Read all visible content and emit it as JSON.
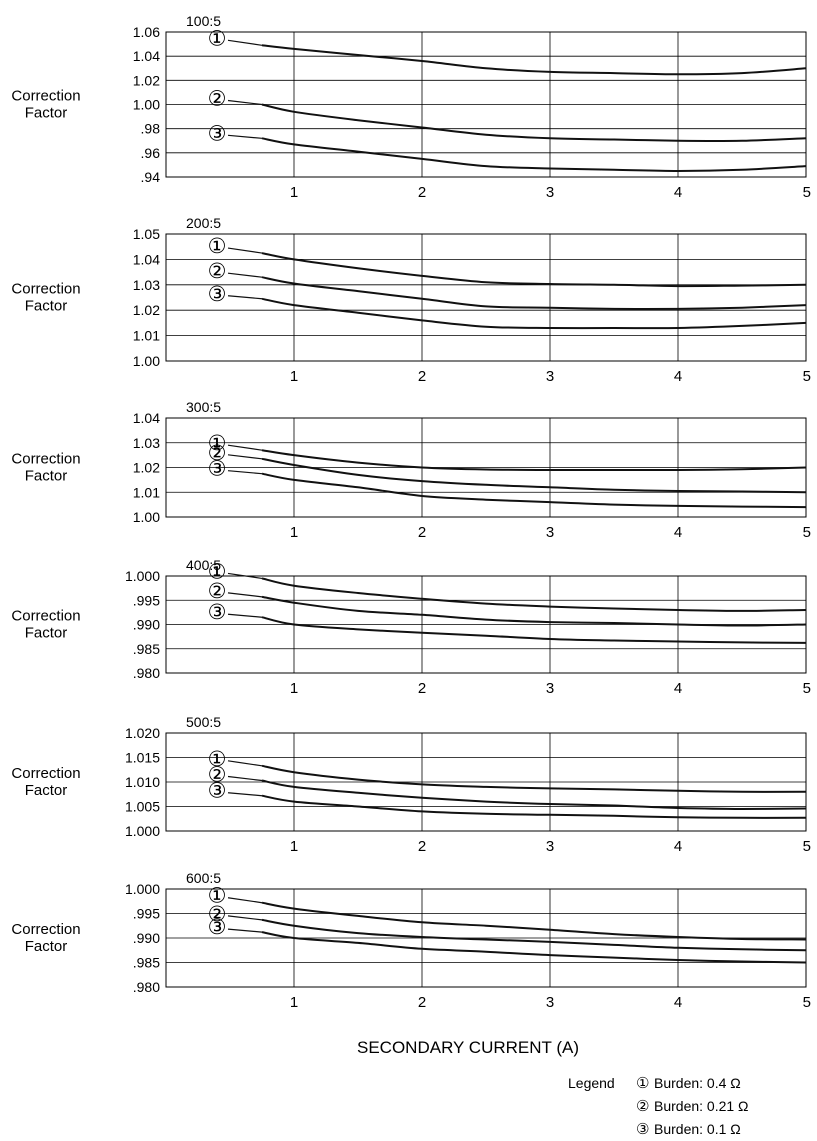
{
  "xlabel": "SECONDARY CURRENT (A)",
  "legend": {
    "title": "Legend",
    "placement": "bottom-right",
    "items": [
      {
        "marker": "①",
        "label": "Burden: 0.4 Ω"
      },
      {
        "marker": "②",
        "label": "Burden: 0.21 Ω"
      },
      {
        "marker": "③",
        "label": "Burden: 0.1 Ω"
      }
    ]
  },
  "chart_data": [
    {
      "type": "line",
      "title": "100:5",
      "ylabel": "Correction Factor",
      "xlim": [
        0,
        5
      ],
      "ylim": [
        0.94,
        1.06
      ],
      "xticks": [
        1,
        2,
        3,
        4,
        5
      ],
      "xtick_labels": [
        "1",
        "2",
        "3",
        "4",
        "5"
      ],
      "yticks": [
        0.94,
        0.96,
        0.98,
        1.0,
        1.02,
        1.04,
        1.06
      ],
      "ytick_labels": [
        ".94",
        ".96",
        ".98",
        "1.00",
        "1.02",
        "1.04",
        "1.06"
      ],
      "grid": true,
      "series": [
        {
          "marker": "①",
          "x": [
            0.75,
            1,
            1.5,
            2,
            2.5,
            3,
            3.5,
            4,
            4.5,
            5
          ],
          "y": [
            1.049,
            1.046,
            1.041,
            1.036,
            1.03,
            1.027,
            1.026,
            1.025,
            1.026,
            1.03
          ]
        },
        {
          "marker": "②",
          "x": [
            0.75,
            1,
            1.5,
            2,
            2.5,
            3,
            3.5,
            4,
            4.5,
            5
          ],
          "y": [
            1.0,
            0.994,
            0.987,
            0.981,
            0.975,
            0.972,
            0.971,
            0.97,
            0.97,
            0.972
          ]
        },
        {
          "marker": "③",
          "x": [
            0.75,
            1,
            1.5,
            2,
            2.5,
            3,
            3.5,
            4,
            4.5,
            5
          ],
          "y": [
            0.972,
            0.967,
            0.961,
            0.955,
            0.949,
            0.947,
            0.946,
            0.945,
            0.946,
            0.949
          ]
        }
      ]
    },
    {
      "type": "line",
      "title": "200:5",
      "ylabel": "Correction Factor",
      "xlim": [
        0,
        5
      ],
      "ylim": [
        1.0,
        1.05
      ],
      "xticks": [
        1,
        2,
        3,
        4,
        5
      ],
      "xtick_labels": [
        "1",
        "2",
        "3",
        "4",
        "5"
      ],
      "yticks": [
        1.0,
        1.01,
        1.02,
        1.03,
        1.04,
        1.05
      ],
      "ytick_labels": [
        "1.00",
        "1.01",
        "1.02",
        "1.03",
        "1.04",
        "1.05"
      ],
      "grid": true,
      "series": [
        {
          "marker": "①",
          "x": [
            0.75,
            1,
            1.5,
            2,
            2.5,
            3,
            3.5,
            4,
            4.5,
            5
          ],
          "y": [
            1.0425,
            1.04,
            1.0365,
            1.0335,
            1.031,
            1.0303,
            1.03,
            1.0295,
            1.0297,
            1.03
          ]
        },
        {
          "marker": "②",
          "x": [
            0.75,
            1,
            1.5,
            2,
            2.5,
            3,
            3.5,
            4,
            4.5,
            5
          ],
          "y": [
            1.033,
            1.0305,
            1.0275,
            1.0245,
            1.0215,
            1.021,
            1.0205,
            1.0205,
            1.021,
            1.022
          ]
        },
        {
          "marker": "③",
          "x": [
            0.75,
            1,
            1.5,
            2,
            2.5,
            3,
            3.5,
            4,
            4.5,
            5
          ],
          "y": [
            1.0245,
            1.022,
            1.019,
            1.016,
            1.0135,
            1.013,
            1.013,
            1.013,
            1.0138,
            1.015
          ]
        }
      ]
    },
    {
      "type": "line",
      "title": "300:5",
      "ylabel": "Correction Factor",
      "xlim": [
        0,
        5
      ],
      "ylim": [
        1.0,
        1.04
      ],
      "xticks": [
        1,
        2,
        3,
        4,
        5
      ],
      "xtick_labels": [
        "1",
        "2",
        "3",
        "4",
        "5"
      ],
      "yticks": [
        1.0,
        1.01,
        1.02,
        1.03,
        1.04
      ],
      "ytick_labels": [
        "1.00",
        "1.01",
        "1.02",
        "1.03",
        "1.04"
      ],
      "grid": true,
      "series": [
        {
          "marker": "①",
          "x": [
            0.75,
            1,
            1.5,
            2,
            2.5,
            3,
            3.5,
            4,
            4.5,
            5
          ],
          "y": [
            1.027,
            1.025,
            1.022,
            1.02,
            1.0192,
            1.019,
            1.019,
            1.019,
            1.0193,
            1.02
          ]
        },
        {
          "marker": "②",
          "x": [
            0.75,
            1,
            1.5,
            2,
            2.5,
            3,
            3.5,
            4,
            4.5,
            5
          ],
          "y": [
            1.0235,
            1.021,
            1.017,
            1.0145,
            1.013,
            1.012,
            1.011,
            1.0105,
            1.0103,
            1.01
          ]
        },
        {
          "marker": "③",
          "x": [
            0.75,
            1,
            1.5,
            2,
            2.5,
            3,
            3.5,
            4,
            4.5,
            5
          ],
          "y": [
            1.0175,
            1.015,
            1.012,
            1.0085,
            1.007,
            1.006,
            1.005,
            1.0045,
            1.0042,
            1.004
          ]
        }
      ]
    },
    {
      "type": "line",
      "title": "400:5",
      "ylabel": "Correction Factor",
      "xlim": [
        0,
        5
      ],
      "ylim": [
        0.98,
        1.0
      ],
      "xticks": [
        1,
        2,
        3,
        4,
        5
      ],
      "xtick_labels": [
        "1",
        "2",
        "3",
        "4",
        "5"
      ],
      "yticks": [
        0.98,
        0.985,
        0.99,
        0.995,
        1.0
      ],
      "ytick_labels": [
        ".980",
        ".985",
        ".990",
        ".995",
        "1.000"
      ],
      "grid": true,
      "series": [
        {
          "marker": "①",
          "x": [
            0.75,
            1,
            1.5,
            2,
            2.5,
            3,
            3.5,
            4,
            4.5,
            5
          ],
          "y": [
            0.9995,
            0.998,
            0.9965,
            0.9953,
            0.9943,
            0.9937,
            0.9933,
            0.993,
            0.9928,
            0.993
          ]
        },
        {
          "marker": "②",
          "x": [
            0.75,
            1,
            1.5,
            2,
            2.5,
            3,
            3.5,
            4,
            4.5,
            5
          ],
          "y": [
            0.9957,
            0.9945,
            0.9928,
            0.992,
            0.991,
            0.9905,
            0.9903,
            0.99,
            0.9898,
            0.99
          ]
        },
        {
          "marker": "③",
          "x": [
            0.75,
            1,
            1.5,
            2,
            2.5,
            3,
            3.5,
            4,
            4.5,
            5
          ],
          "y": [
            0.9915,
            0.99,
            0.989,
            0.9883,
            0.9877,
            0.987,
            0.9867,
            0.9865,
            0.9863,
            0.9862
          ]
        }
      ]
    },
    {
      "type": "line",
      "title": "500:5",
      "ylabel": "Correction Factor",
      "xlim": [
        0,
        5
      ],
      "ylim": [
        1.0,
        1.02
      ],
      "xticks": [
        1,
        2,
        3,
        4,
        5
      ],
      "xtick_labels": [
        "1",
        "2",
        "3",
        "4",
        "5"
      ],
      "yticks": [
        1.0,
        1.005,
        1.01,
        1.015,
        1.02
      ],
      "ytick_labels": [
        "1.000",
        "1.005",
        "1.010",
        "1.015",
        "1.020"
      ],
      "grid": true,
      "series": [
        {
          "marker": "①",
          "x": [
            0.75,
            1,
            1.5,
            2,
            2.5,
            3,
            3.5,
            4,
            4.5,
            5
          ],
          "y": [
            1.0133,
            1.012,
            1.0105,
            1.0095,
            1.009,
            1.0087,
            1.0085,
            1.0082,
            1.008,
            1.008
          ]
        },
        {
          "marker": "②",
          "x": [
            0.75,
            1,
            1.5,
            2,
            2.5,
            3,
            3.5,
            4,
            4.5,
            5
          ],
          "y": [
            1.0103,
            1.009,
            1.0078,
            1.0068,
            1.006,
            1.0055,
            1.0052,
            1.0047,
            1.0045,
            1.0046
          ]
        },
        {
          "marker": "③",
          "x": [
            0.75,
            1,
            1.5,
            2,
            2.5,
            3,
            3.5,
            4,
            4.5,
            5
          ],
          "y": [
            1.0072,
            1.006,
            1.005,
            1.004,
            1.0035,
            1.0033,
            1.0031,
            1.0028,
            1.0027,
            1.0027
          ]
        }
      ]
    },
    {
      "type": "line",
      "title": "600:5",
      "ylabel": "Correction Factor",
      "xlim": [
        0,
        5
      ],
      "ylim": [
        0.98,
        1.0
      ],
      "xticks": [
        1,
        2,
        3,
        4,
        5
      ],
      "xtick_labels": [
        "1",
        "2",
        "3",
        "4",
        "5"
      ],
      "yticks": [
        0.98,
        0.985,
        0.99,
        0.995,
        1.0
      ],
      "ytick_labels": [
        ".980",
        ".985",
        ".990",
        ".995",
        "1.000"
      ],
      "grid": true,
      "series": [
        {
          "marker": "①",
          "x": [
            0.75,
            1,
            1.5,
            2,
            2.5,
            3,
            3.5,
            4,
            4.5,
            5
          ],
          "y": [
            0.9972,
            0.996,
            0.9945,
            0.9932,
            0.9925,
            0.9917,
            0.9908,
            0.9902,
            0.9898,
            0.9897
          ]
        },
        {
          "marker": "②",
          "x": [
            0.75,
            1,
            1.5,
            2,
            2.5,
            3,
            3.5,
            4,
            4.5,
            5
          ],
          "y": [
            0.9937,
            0.9925,
            0.991,
            0.9902,
            0.9897,
            0.9892,
            0.9886,
            0.988,
            0.9877,
            0.9875
          ]
        },
        {
          "marker": "③",
          "x": [
            0.75,
            1,
            1.5,
            2,
            2.5,
            3,
            3.5,
            4,
            4.5,
            5
          ],
          "y": [
            0.9912,
            0.99,
            0.989,
            0.9878,
            0.9872,
            0.9865,
            0.986,
            0.9855,
            0.9852,
            0.985
          ]
        }
      ]
    }
  ]
}
